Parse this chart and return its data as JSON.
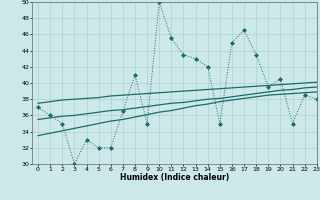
{
  "xlabel": "Humidex (Indice chaleur)",
  "xlim": [
    -0.5,
    23
  ],
  "ylim": [
    30,
    50
  ],
  "yticks": [
    30,
    32,
    34,
    36,
    38,
    40,
    42,
    44,
    46,
    48,
    50
  ],
  "xticks": [
    0,
    1,
    2,
    3,
    4,
    5,
    6,
    7,
    8,
    9,
    10,
    11,
    12,
    13,
    14,
    15,
    16,
    17,
    18,
    19,
    20,
    21,
    22,
    23
  ],
  "bg_color": "#cce8e8",
  "line_color": "#1a6b6b",
  "line1_y": [
    37,
    36,
    35,
    30,
    33,
    32,
    32,
    36.5,
    41,
    35,
    50,
    45.5,
    43.5,
    43,
    42,
    35,
    45,
    46.5,
    43.5,
    39.5,
    40.5,
    35,
    38.5,
    38
  ],
  "line2_y": [
    33.5,
    33.8,
    34.1,
    34.4,
    34.7,
    35.0,
    35.3,
    35.5,
    35.8,
    36.1,
    36.4,
    36.6,
    36.9,
    37.2,
    37.4,
    37.7,
    37.9,
    38.1,
    38.3,
    38.5,
    38.6,
    38.7,
    38.8,
    38.9
  ],
  "line3_y": [
    35.5,
    35.7,
    35.9,
    36.0,
    36.2,
    36.4,
    36.6,
    36.7,
    36.9,
    37.1,
    37.3,
    37.5,
    37.6,
    37.8,
    38.0,
    38.1,
    38.3,
    38.5,
    38.7,
    38.9,
    39.1,
    39.2,
    39.4,
    39.5
  ],
  "line4_y": [
    37.5,
    37.7,
    37.9,
    38.0,
    38.1,
    38.2,
    38.4,
    38.5,
    38.6,
    38.7,
    38.8,
    38.9,
    39.0,
    39.1,
    39.2,
    39.3,
    39.4,
    39.5,
    39.6,
    39.7,
    39.8,
    39.9,
    40.0,
    40.1
  ]
}
